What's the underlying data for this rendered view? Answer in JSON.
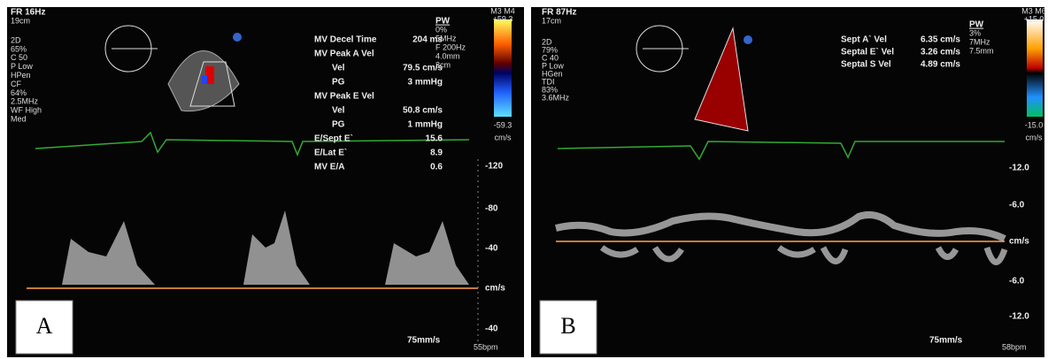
{
  "panels": [
    {
      "header": {
        "frame_rate": "FR 16Hz",
        "depth": "19cm"
      },
      "settings": [
        "2D",
        "65%",
        "C 50",
        "P Low",
        "HPen",
        "CF",
        "64%",
        "2.5MHz",
        "WF High",
        "Med"
      ],
      "pw": [
        "PW",
        "0%",
        "5MHz",
        "F 200Hz",
        "4.0mm",
        "3cm"
      ],
      "colorbar": {
        "id": "M3 M4",
        "max": "+59.3",
        "min": "-59.3",
        "unit": "cm/s"
      },
      "measurements": [
        {
          "label": "MV Decel Time",
          "value": "204 ms"
        },
        {
          "label": "MV Peak A Vel"
        },
        {
          "label": "Vel",
          "value": "79.5 cm/s"
        },
        {
          "label": "PG",
          "value": "3 mmHg"
        },
        {
          "label": "MV Peak E Vel"
        },
        {
          "label": "Vel",
          "value": "50.8 cm/s"
        },
        {
          "label": "PG",
          "value": "1 mmHg"
        },
        {
          "label": "E/Sept E`",
          "value": "15.6"
        },
        {
          "label": "E/Lat E`",
          "value": "8.9"
        },
        {
          "label": "MV E/A",
          "value": "0.6"
        }
      ],
      "scale": [
        "-120",
        "-80",
        "-40",
        "cm/s",
        "-40"
      ],
      "speed": "75mm/s",
      "heart_rate": "55bpm",
      "label": "A"
    },
    {
      "header": {
        "frame_rate": "FR 87Hz",
        "depth": "17cm"
      },
      "settings": [
        "2D",
        "79%",
        "C 40",
        "P Low",
        "HGen",
        "TDI",
        "83%",
        "3.6MHz"
      ],
      "pw": [
        "PW",
        "3%",
        "7MHz",
        "7.5mm"
      ],
      "colorbar": {
        "id": "M3 M6",
        "max": "+15.0",
        "min": "-15.0",
        "unit": "cm/s"
      },
      "measurements": [
        {
          "label": "Sept A` Vel",
          "value": "6.35 cm/s"
        },
        {
          "label": "Septal E` Vel",
          "value": "3.26 cm/s"
        },
        {
          "label": "Septal S Vel",
          "value": "4.89 cm/s"
        }
      ],
      "scale": [
        "-12.0",
        "-6.0",
        "cm/s",
        "-6.0",
        "-12.0"
      ],
      "speed": "75mm/s",
      "heart_rate": "58bpm",
      "label": "B"
    }
  ]
}
